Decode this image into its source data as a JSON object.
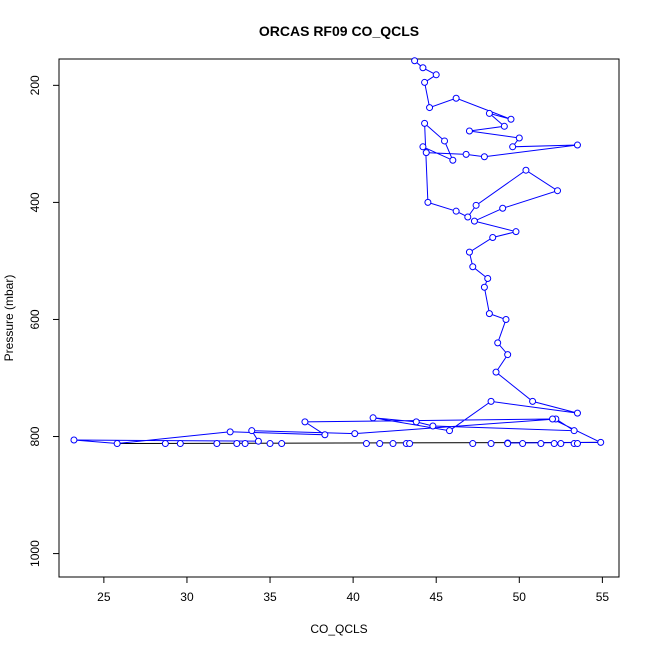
{
  "chart_data": {
    "type": "line",
    "title": "ORCAS RF09 CO_QCLS",
    "xlabel": "CO_QCLS",
    "ylabel": "Pressure (mbar)",
    "xlim": [
      22.3,
      56.0
    ],
    "ylim": [
      1040,
      155
    ],
    "y_inverted": true,
    "x_ticks": [
      "25",
      "30",
      "35",
      "40",
      "45",
      "50",
      "55"
    ],
    "y_ticks": [
      "200",
      "400",
      "600",
      "800",
      "1000"
    ],
    "grid": false,
    "legend": "none",
    "colors": {
      "series": "#0000ff",
      "baseline": "#000000"
    },
    "series": [
      {
        "name": "",
        "marker": "open-circle",
        "x": [
          43.7,
          44.2,
          45.0,
          44.3,
          44.6,
          46.2,
          49.5,
          48.2,
          49.1,
          47.0,
          50.0,
          49.6,
          53.5,
          47.9,
          46.8,
          44.4,
          44.2,
          46.0,
          45.5,
          44.3,
          44.5,
          46.2,
          46.9,
          47.4,
          50.4,
          52.3,
          49.0,
          47.3,
          49.8,
          48.4,
          47.0,
          47.2,
          48.1,
          47.9,
          48.2,
          49.2,
          48.7,
          49.3,
          48.6,
          50.8,
          53.5,
          48.3,
          45.8,
          41.2,
          43.8,
          44.8,
          53.3,
          52.2,
          40.1,
          33.9,
          34.3,
          23.2,
          25.8,
          32.6,
          38.3,
          37.1,
          52.0,
          54.9,
          49.3
        ],
        "y": [
          158,
          170,
          182,
          195,
          238,
          222,
          258,
          248,
          270,
          278,
          290,
          305,
          302,
          322,
          318,
          315,
          305,
          328,
          295,
          265,
          400,
          415,
          425,
          405,
          345,
          380,
          410,
          432,
          450,
          460,
          485,
          510,
          530,
          545,
          590,
          600,
          640,
          660,
          690,
          740,
          760,
          740,
          790,
          768,
          775,
          782,
          790,
          770,
          795,
          790,
          808,
          806,
          812,
          792,
          797,
          775,
          770,
          810,
          811
        ]
      }
    ]
  }
}
